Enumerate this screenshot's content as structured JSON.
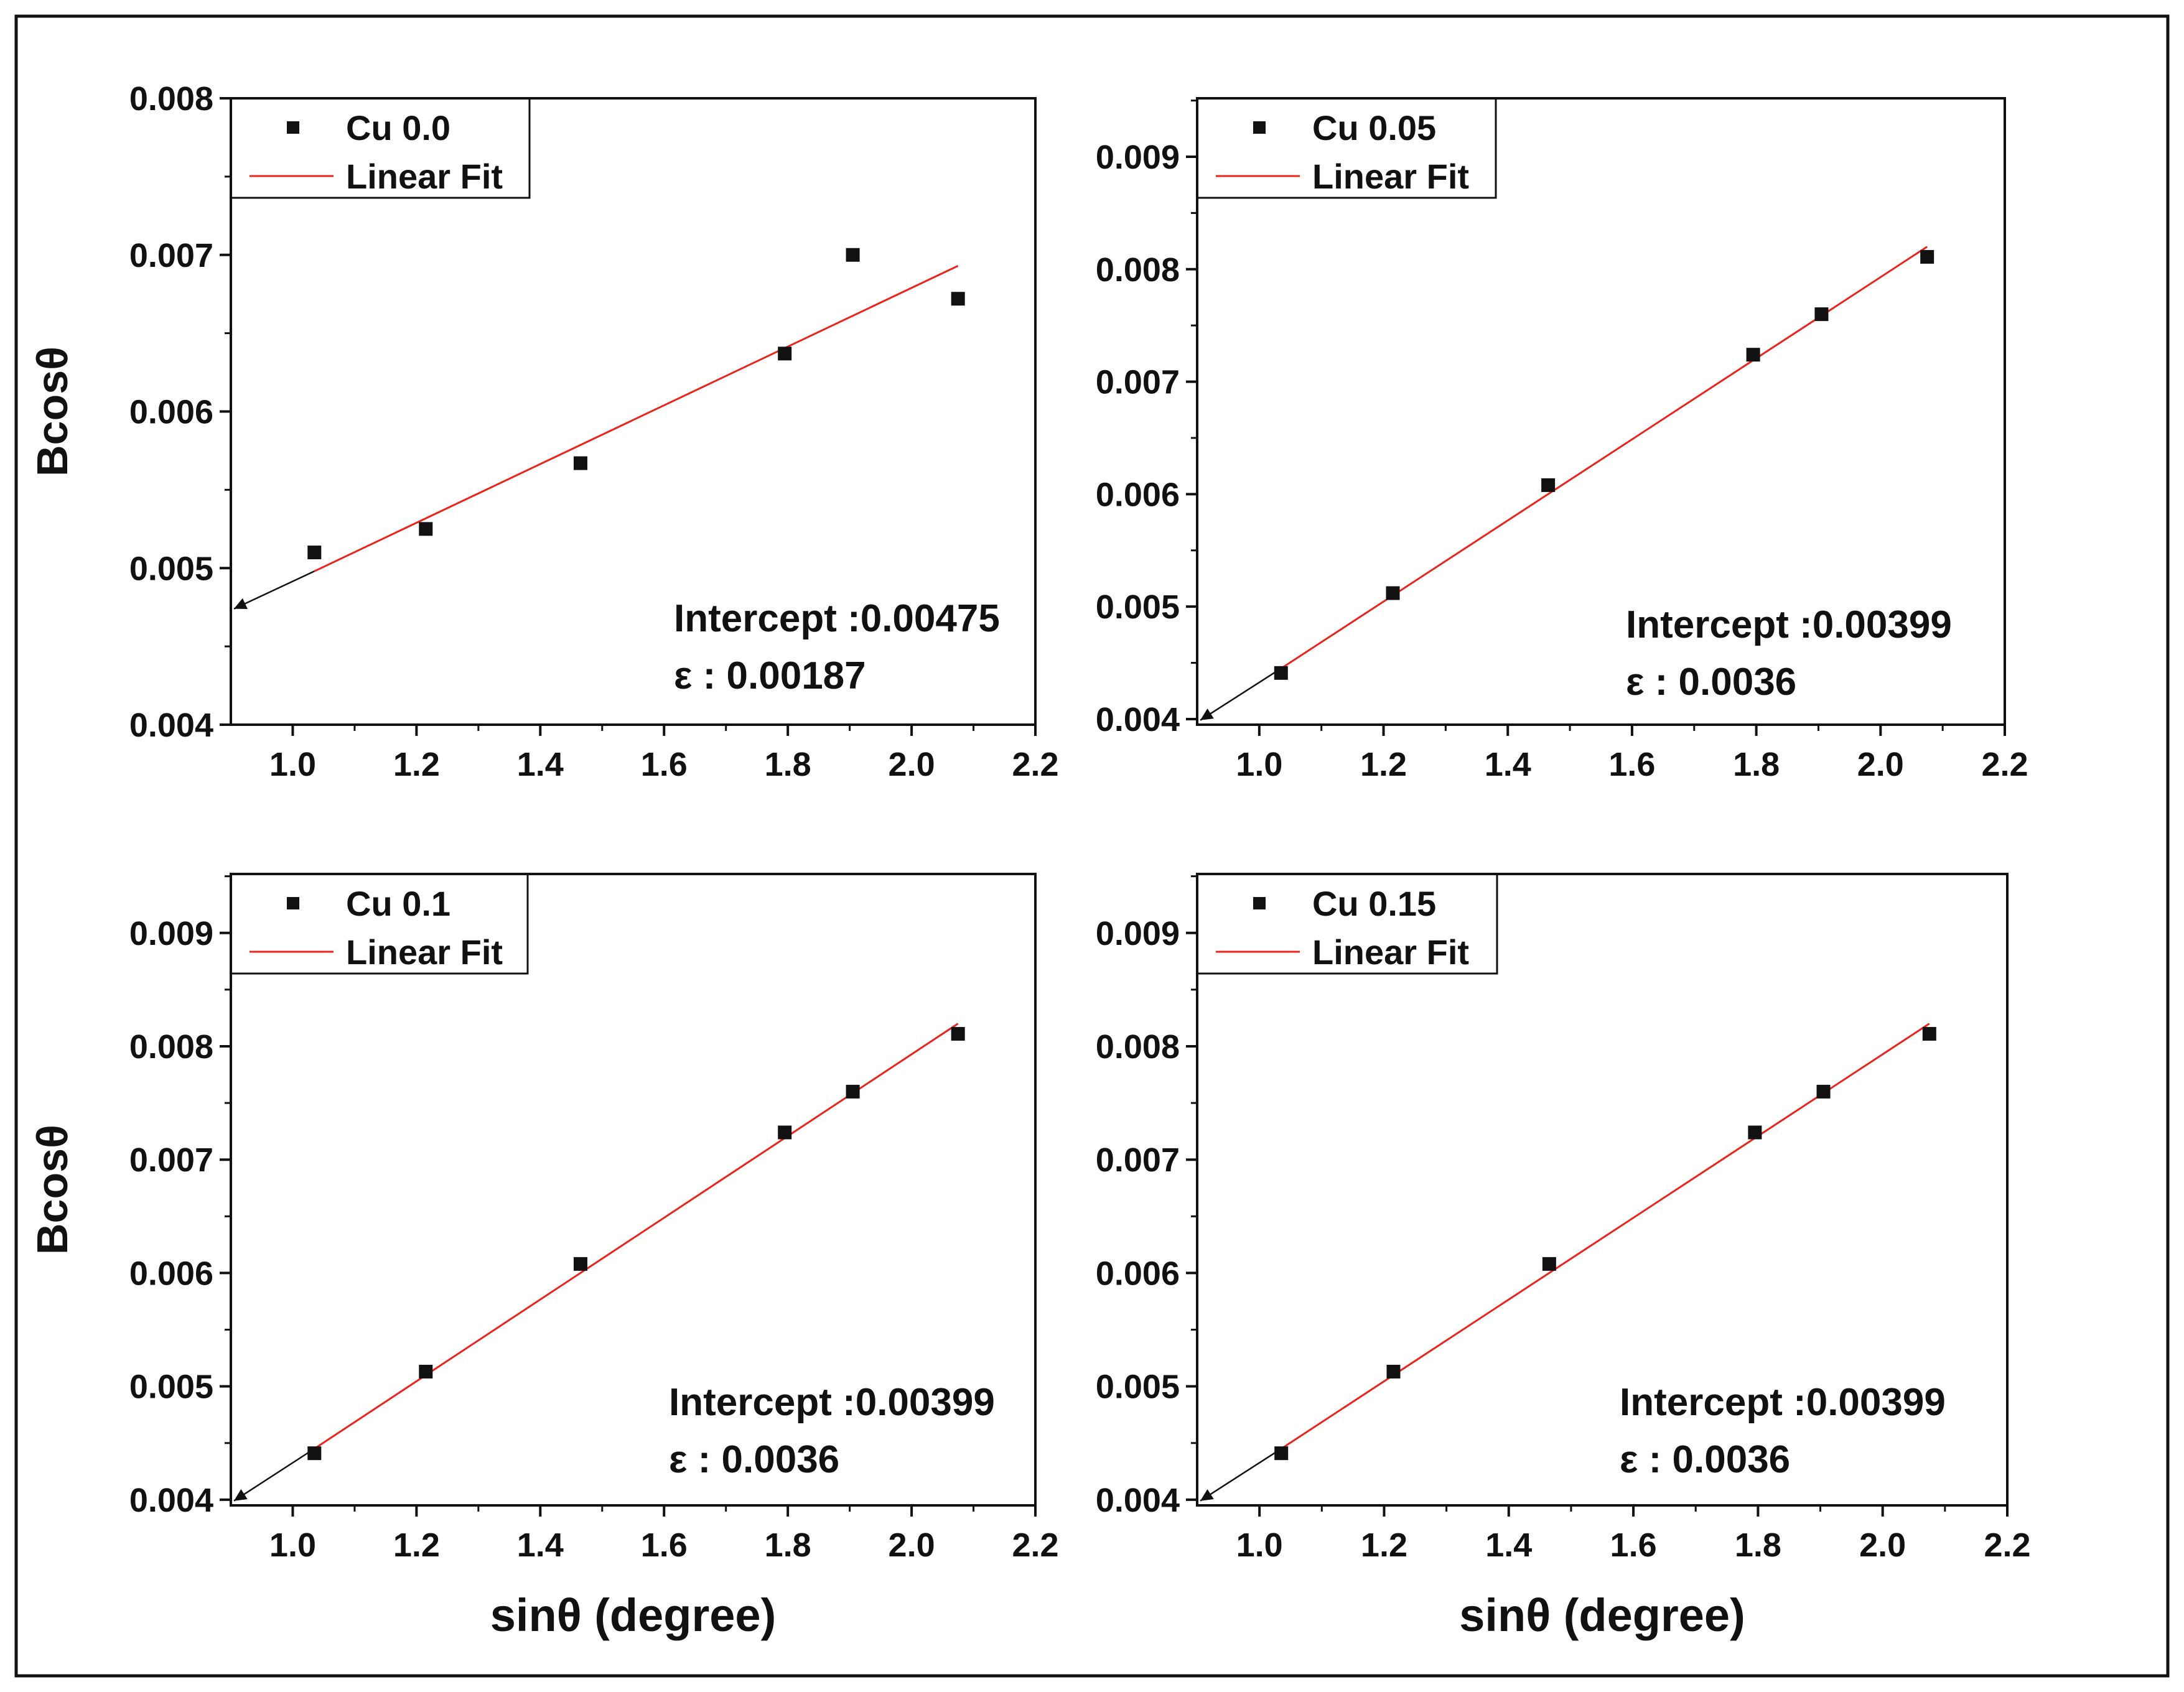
{
  "chart_data": [
    {
      "type": "scatter",
      "legend": {
        "marker_label": "Cu 0.0",
        "fit_label": "Linear Fit"
      },
      "x": [
        1.035,
        1.215,
        1.465,
        1.795,
        1.905,
        2.075
      ],
      "y": [
        0.0051,
        0.00525,
        0.00567,
        0.00637,
        0.007,
        0.00672
      ],
      "fit": {
        "x_start": 1.035,
        "x_end": 2.075,
        "y_start": 0.00498,
        "y_end": 0.00693,
        "extrap_x": 0.905,
        "extrap_y": 0.00474
      },
      "xlim": [
        0.9,
        2.2
      ],
      "ylim": [
        0.004,
        0.008
      ],
      "xticks": [
        1.0,
        1.2,
        1.4,
        1.6,
        1.8,
        2.0,
        2.2
      ],
      "xtick_labels": [
        "1.0",
        "1.2",
        "1.4",
        "1.6",
        "1.8",
        "2.0",
        "2.2"
      ],
      "yticks": [
        0.004,
        0.005,
        0.006,
        0.007,
        0.008
      ],
      "ytick_labels": [
        "0.004",
        "0.005",
        "0.006",
        "0.007",
        "0.008"
      ],
      "ylabel": "Bcosθ",
      "xlabel": "",
      "annotation": {
        "intercept": "Intercept :0.00475",
        "strain": "ε : 0.00187"
      }
    },
    {
      "type": "scatter",
      "legend": {
        "marker_label": "Cu 0.05",
        "fit_label": "Linear Fit"
      },
      "x": [
        1.035,
        1.215,
        1.465,
        1.795,
        1.905,
        2.075
      ],
      "y": [
        0.00441,
        0.00512,
        0.00608,
        0.00724,
        0.0076,
        0.00811
      ],
      "fit": {
        "x_start": 1.035,
        "x_end": 2.075,
        "y_start": 0.00445,
        "y_end": 0.0082,
        "extrap_x": 0.905,
        "extrap_y": 0.00399
      },
      "xlim": [
        0.9,
        2.2
      ],
      "ylim": [
        0.00395,
        0.00952
      ],
      "xticks": [
        1.0,
        1.2,
        1.4,
        1.6,
        1.8,
        2.0,
        2.2
      ],
      "xtick_labels": [
        "1.0",
        "1.2",
        "1.4",
        "1.6",
        "1.8",
        "2.0",
        "2.2"
      ],
      "yticks": [
        0.004,
        0.005,
        0.006,
        0.007,
        0.008,
        0.009
      ],
      "ytick_labels": [
        "0.004",
        "0.005",
        "0.006",
        "0.007",
        "0.008",
        "0.009"
      ],
      "ylabel": "",
      "xlabel": "",
      "annotation": {
        "intercept": "Intercept :0.00399",
        "strain": "ε : 0.0036"
      }
    },
    {
      "type": "scatter",
      "legend": {
        "marker_label": "Cu 0.1",
        "fit_label": "Linear Fit"
      },
      "x": [
        1.035,
        1.215,
        1.465,
        1.795,
        1.905,
        2.075
      ],
      "y": [
        0.00441,
        0.00513,
        0.00608,
        0.00724,
        0.0076,
        0.00811
      ],
      "fit": {
        "x_start": 1.035,
        "x_end": 2.075,
        "y_start": 0.00445,
        "y_end": 0.0082,
        "extrap_x": 0.905,
        "extrap_y": 0.00399
      },
      "xlim": [
        0.9,
        2.2
      ],
      "ylim": [
        0.00395,
        0.00952
      ],
      "xticks": [
        1.0,
        1.2,
        1.4,
        1.6,
        1.8,
        2.0,
        2.2
      ],
      "xtick_labels": [
        "1.0",
        "1.2",
        "1.4",
        "1.6",
        "1.8",
        "2.0",
        "2.2"
      ],
      "yticks": [
        0.004,
        0.005,
        0.006,
        0.007,
        0.008,
        0.009
      ],
      "ytick_labels": [
        "0.004",
        "0.005",
        "0.006",
        "0.007",
        "0.008",
        "0.009"
      ],
      "ylabel": "Bcosθ",
      "xlabel": "sinθ (degree)",
      "annotation": {
        "intercept": "Intercept :0.00399",
        "strain": "ε : 0.0036"
      }
    },
    {
      "type": "scatter",
      "legend": {
        "marker_label": "Cu 0.15",
        "fit_label": "Linear Fit"
      },
      "x": [
        1.035,
        1.215,
        1.465,
        1.795,
        1.905,
        2.075
      ],
      "y": [
        0.00441,
        0.00513,
        0.00608,
        0.00724,
        0.0076,
        0.00811
      ],
      "fit": {
        "x_start": 1.035,
        "x_end": 2.075,
        "y_start": 0.00445,
        "y_end": 0.0082,
        "extrap_x": 0.905,
        "extrap_y": 0.00399
      },
      "xlim": [
        0.9,
        2.2
      ],
      "ylim": [
        0.00395,
        0.00952
      ],
      "xticks": [
        1.0,
        1.2,
        1.4,
        1.6,
        1.8,
        2.0,
        2.2
      ],
      "xtick_labels": [
        "1.0",
        "1.2",
        "1.4",
        "1.6",
        "1.8",
        "2.0",
        "2.2"
      ],
      "yticks": [
        0.004,
        0.005,
        0.006,
        0.007,
        0.008,
        0.009
      ],
      "ytick_labels": [
        "0.004",
        "0.005",
        "0.006",
        "0.007",
        "0.008",
        "0.009"
      ],
      "ylabel": "",
      "xlabel": "sinθ (degree)",
      "annotation": {
        "intercept": "Intercept :0.00399",
        "strain": "ε : 0.0036"
      }
    }
  ],
  "colors": {
    "marker": "#111111",
    "fit_line": "#e8241c",
    "extrapolation": "#111111",
    "frame": "#111111",
    "background": "#ffffff"
  }
}
